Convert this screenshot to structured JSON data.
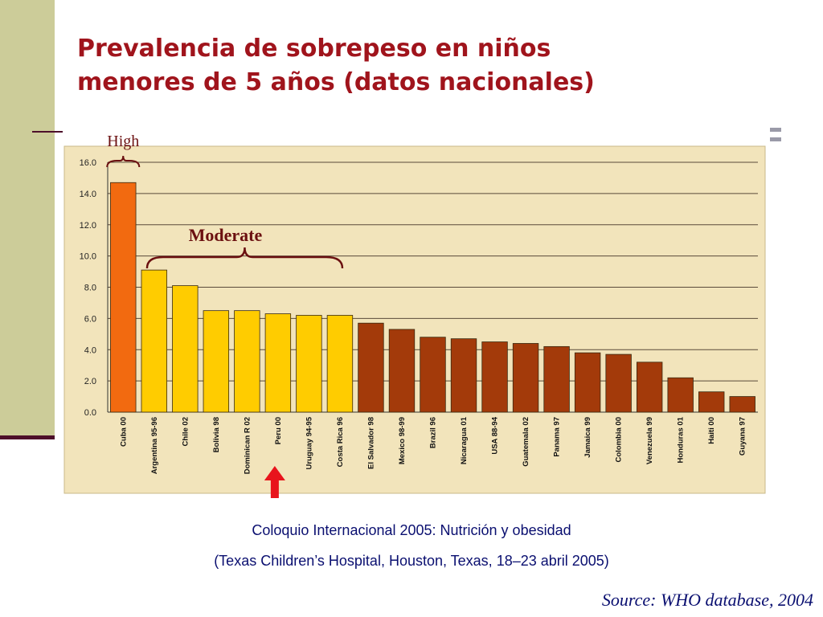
{
  "slide": {
    "title_line1": "Prevalencia de sobrepeso en niños",
    "title_line2": "menores de 5 años (datos nacionales)",
    "caption_line1": "Coloquio Internacional 2005: Nutrición y obesidad",
    "caption_line2": "(Texas Children’s Hospital, Houston, Texas, 18–23 abril 2005)",
    "source": "Source: WHO database, 2004"
  },
  "chart_data": {
    "type": "bar",
    "categories": [
      "Cuba 00",
      "Argentina 95-96",
      "Chile 02",
      "Bolivia 98",
      "Dominican R 02",
      "Peru 00",
      "Uruguay 94-95",
      "Costa Rica 96",
      "El Salvador 98",
      "Mexico 98-99",
      "Brazil 96",
      "Nicaragua 01",
      "USA 88-94",
      "Guatemala 02",
      "Panama 97",
      "Jamaica 99",
      "Colombia 00",
      "Venezuela 99",
      "Honduras 01",
      "Haiti 00",
      "Guyana 97"
    ],
    "values": [
      14.7,
      9.1,
      8.1,
      6.5,
      6.5,
      6.3,
      6.2,
      6.2,
      5.7,
      5.3,
      4.8,
      4.7,
      4.5,
      4.4,
      4.2,
      3.8,
      3.7,
      3.2,
      2.2,
      1.3,
      1.0
    ],
    "groups": [
      "high",
      "moderate",
      "moderate",
      "moderate",
      "moderate",
      "moderate",
      "moderate",
      "moderate",
      "low",
      "low",
      "low",
      "low",
      "low",
      "low",
      "low",
      "low",
      "low",
      "low",
      "low",
      "low",
      "low"
    ],
    "group_colors": {
      "high": "#f26a10",
      "moderate": "#ffcc00",
      "low": "#a33a0a"
    },
    "y_ticks": [
      "0.0",
      "2.0",
      "4.0",
      "6.0",
      "8.0",
      "10.0",
      "12.0",
      "14.0",
      "16.0"
    ],
    "ylim": [
      0,
      16
    ],
    "grid": true,
    "annotations": {
      "high": "High",
      "moderate": "Moderate"
    },
    "highlight_category": "Peru 00",
    "highlight_color": "#e8141c",
    "background_color": "#f2e4bb"
  }
}
